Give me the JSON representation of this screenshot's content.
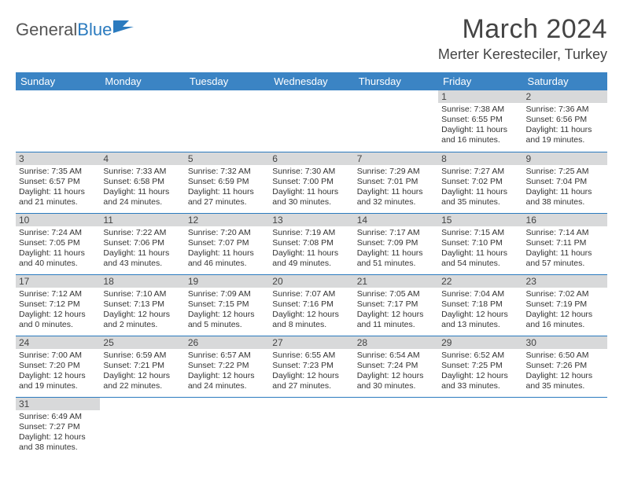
{
  "logo": {
    "text_general": "General",
    "text_blue": "Blue"
  },
  "title": "March 2024",
  "location": "Merter Keresteciler, Turkey",
  "colors": {
    "header_bg": "#3b84c4",
    "header_text": "#ffffff",
    "daynum_bg": "#d8d9da",
    "border": "#2b7bbf",
    "body_text": "#333333",
    "title_text": "#444444"
  },
  "weekdays": [
    "Sunday",
    "Monday",
    "Tuesday",
    "Wednesday",
    "Thursday",
    "Friday",
    "Saturday"
  ],
  "weeks": [
    [
      null,
      null,
      null,
      null,
      null,
      {
        "n": "1",
        "sr": "Sunrise: 7:38 AM",
        "ss": "Sunset: 6:55 PM",
        "dl": "Daylight: 11 hours and 16 minutes."
      },
      {
        "n": "2",
        "sr": "Sunrise: 7:36 AM",
        "ss": "Sunset: 6:56 PM",
        "dl": "Daylight: 11 hours and 19 minutes."
      }
    ],
    [
      {
        "n": "3",
        "sr": "Sunrise: 7:35 AM",
        "ss": "Sunset: 6:57 PM",
        "dl": "Daylight: 11 hours and 21 minutes."
      },
      {
        "n": "4",
        "sr": "Sunrise: 7:33 AM",
        "ss": "Sunset: 6:58 PM",
        "dl": "Daylight: 11 hours and 24 minutes."
      },
      {
        "n": "5",
        "sr": "Sunrise: 7:32 AM",
        "ss": "Sunset: 6:59 PM",
        "dl": "Daylight: 11 hours and 27 minutes."
      },
      {
        "n": "6",
        "sr": "Sunrise: 7:30 AM",
        "ss": "Sunset: 7:00 PM",
        "dl": "Daylight: 11 hours and 30 minutes."
      },
      {
        "n": "7",
        "sr": "Sunrise: 7:29 AM",
        "ss": "Sunset: 7:01 PM",
        "dl": "Daylight: 11 hours and 32 minutes."
      },
      {
        "n": "8",
        "sr": "Sunrise: 7:27 AM",
        "ss": "Sunset: 7:02 PM",
        "dl": "Daylight: 11 hours and 35 minutes."
      },
      {
        "n": "9",
        "sr": "Sunrise: 7:25 AM",
        "ss": "Sunset: 7:04 PM",
        "dl": "Daylight: 11 hours and 38 minutes."
      }
    ],
    [
      {
        "n": "10",
        "sr": "Sunrise: 7:24 AM",
        "ss": "Sunset: 7:05 PM",
        "dl": "Daylight: 11 hours and 40 minutes."
      },
      {
        "n": "11",
        "sr": "Sunrise: 7:22 AM",
        "ss": "Sunset: 7:06 PM",
        "dl": "Daylight: 11 hours and 43 minutes."
      },
      {
        "n": "12",
        "sr": "Sunrise: 7:20 AM",
        "ss": "Sunset: 7:07 PM",
        "dl": "Daylight: 11 hours and 46 minutes."
      },
      {
        "n": "13",
        "sr": "Sunrise: 7:19 AM",
        "ss": "Sunset: 7:08 PM",
        "dl": "Daylight: 11 hours and 49 minutes."
      },
      {
        "n": "14",
        "sr": "Sunrise: 7:17 AM",
        "ss": "Sunset: 7:09 PM",
        "dl": "Daylight: 11 hours and 51 minutes."
      },
      {
        "n": "15",
        "sr": "Sunrise: 7:15 AM",
        "ss": "Sunset: 7:10 PM",
        "dl": "Daylight: 11 hours and 54 minutes."
      },
      {
        "n": "16",
        "sr": "Sunrise: 7:14 AM",
        "ss": "Sunset: 7:11 PM",
        "dl": "Daylight: 11 hours and 57 minutes."
      }
    ],
    [
      {
        "n": "17",
        "sr": "Sunrise: 7:12 AM",
        "ss": "Sunset: 7:12 PM",
        "dl": "Daylight: 12 hours and 0 minutes."
      },
      {
        "n": "18",
        "sr": "Sunrise: 7:10 AM",
        "ss": "Sunset: 7:13 PM",
        "dl": "Daylight: 12 hours and 2 minutes."
      },
      {
        "n": "19",
        "sr": "Sunrise: 7:09 AM",
        "ss": "Sunset: 7:15 PM",
        "dl": "Daylight: 12 hours and 5 minutes."
      },
      {
        "n": "20",
        "sr": "Sunrise: 7:07 AM",
        "ss": "Sunset: 7:16 PM",
        "dl": "Daylight: 12 hours and 8 minutes."
      },
      {
        "n": "21",
        "sr": "Sunrise: 7:05 AM",
        "ss": "Sunset: 7:17 PM",
        "dl": "Daylight: 12 hours and 11 minutes."
      },
      {
        "n": "22",
        "sr": "Sunrise: 7:04 AM",
        "ss": "Sunset: 7:18 PM",
        "dl": "Daylight: 12 hours and 13 minutes."
      },
      {
        "n": "23",
        "sr": "Sunrise: 7:02 AM",
        "ss": "Sunset: 7:19 PM",
        "dl": "Daylight: 12 hours and 16 minutes."
      }
    ],
    [
      {
        "n": "24",
        "sr": "Sunrise: 7:00 AM",
        "ss": "Sunset: 7:20 PM",
        "dl": "Daylight: 12 hours and 19 minutes."
      },
      {
        "n": "25",
        "sr": "Sunrise: 6:59 AM",
        "ss": "Sunset: 7:21 PM",
        "dl": "Daylight: 12 hours and 22 minutes."
      },
      {
        "n": "26",
        "sr": "Sunrise: 6:57 AM",
        "ss": "Sunset: 7:22 PM",
        "dl": "Daylight: 12 hours and 24 minutes."
      },
      {
        "n": "27",
        "sr": "Sunrise: 6:55 AM",
        "ss": "Sunset: 7:23 PM",
        "dl": "Daylight: 12 hours and 27 minutes."
      },
      {
        "n": "28",
        "sr": "Sunrise: 6:54 AM",
        "ss": "Sunset: 7:24 PM",
        "dl": "Daylight: 12 hours and 30 minutes."
      },
      {
        "n": "29",
        "sr": "Sunrise: 6:52 AM",
        "ss": "Sunset: 7:25 PM",
        "dl": "Daylight: 12 hours and 33 minutes."
      },
      {
        "n": "30",
        "sr": "Sunrise: 6:50 AM",
        "ss": "Sunset: 7:26 PM",
        "dl": "Daylight: 12 hours and 35 minutes."
      }
    ],
    [
      {
        "n": "31",
        "sr": "Sunrise: 6:49 AM",
        "ss": "Sunset: 7:27 PM",
        "dl": "Daylight: 12 hours and 38 minutes."
      },
      null,
      null,
      null,
      null,
      null,
      null
    ]
  ]
}
